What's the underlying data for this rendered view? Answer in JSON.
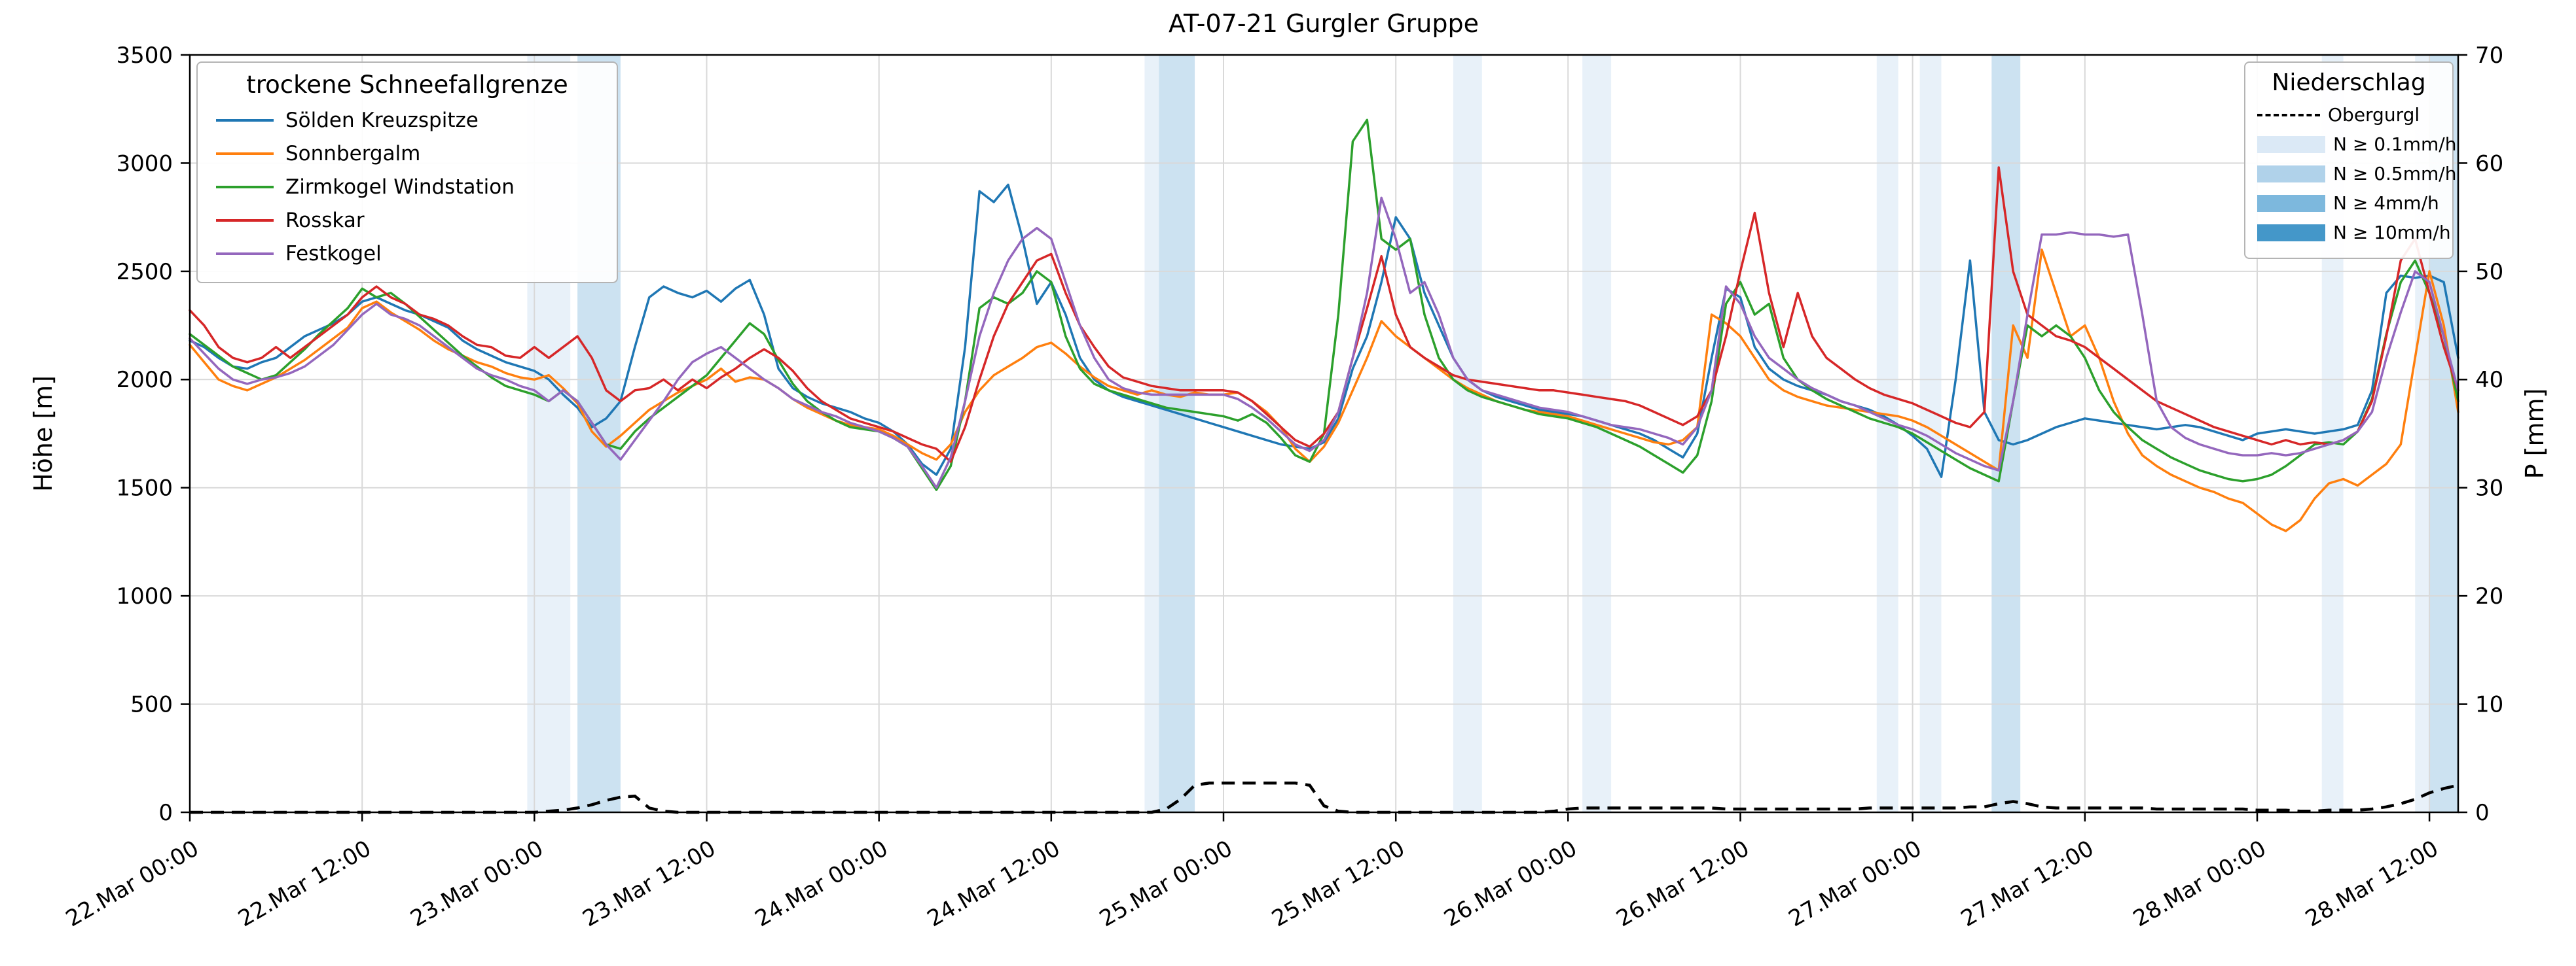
{
  "figure": {
    "title": "AT-07-21 Gurgler Gruppe",
    "ylabel_left": "Höhe [m]",
    "ylabel_right": "P [mm]"
  },
  "legend_snowline": {
    "title": "trockene Schneefallgrenze"
  },
  "legend_precip": {
    "title": "Niederschlag",
    "line_item": {
      "label": "Obergurgl"
    },
    "patch_items": [
      {
        "label": "N ≥ 0.1mm/h",
        "color": "#dbe9f6"
      },
      {
        "label": "N ≥ 0.5mm/h",
        "color": "#b0d2ea"
      },
      {
        "label": "N ≥ 4mm/h",
        "color": "#7db8dd"
      },
      {
        "label": "N ≥ 10mm/h",
        "color": "#4497c9"
      }
    ]
  },
  "chart_data": {
    "type": "line",
    "title": "AT-07-21 Gurgler Gruppe",
    "x_unit": "hours since 22.Mar 00:00, 1h resolution",
    "xlim_hours": [
      0,
      158
    ],
    "x_tick_hours": [
      0,
      12,
      24,
      36,
      48,
      60,
      72,
      84,
      96,
      108,
      120,
      132,
      144,
      156
    ],
    "x_tick_labels": [
      "22.Mar 00:00",
      "22.Mar 12:00",
      "23.Mar 00:00",
      "23.Mar 12:00",
      "24.Mar 00:00",
      "24.Mar 12:00",
      "25.Mar 00:00",
      "25.Mar 12:00",
      "26.Mar 00:00",
      "26.Mar 12:00",
      "27.Mar 00:00",
      "27.Mar 12:00",
      "28.Mar 00:00",
      "28.Mar 12:00"
    ],
    "ylabel_left": "Höhe [m]",
    "ylim_left": [
      0,
      3500
    ],
    "yticks_left": [
      0,
      500,
      1000,
      1500,
      2000,
      2500,
      3000,
      3500
    ],
    "ylabel_right": "P [mm]",
    "ylim_right": [
      0,
      70
    ],
    "yticks_right": [
      0,
      10,
      20,
      30,
      40,
      50,
      60,
      70
    ],
    "grid": true,
    "series": [
      {
        "name": "Sölden Kreuzspitze",
        "color": "#1f77b4",
        "values": [
          2180,
          2150,
          2100,
          2060,
          2050,
          2080,
          2100,
          2150,
          2200,
          2230,
          2260,
          2300,
          2360,
          2380,
          2350,
          2320,
          2300,
          2270,
          2240,
          2180,
          2140,
          2110,
          2080,
          2060,
          2040,
          2000,
          1930,
          1870,
          1780,
          1820,
          1900,
          2150,
          2380,
          2430,
          2400,
          2380,
          2410,
          2360,
          2420,
          2460,
          2300,
          2050,
          1960,
          1920,
          1890,
          1870,
          1850,
          1820,
          1800,
          1760,
          1700,
          1610,
          1560,
          1680,
          2150,
          2870,
          2820,
          2900,
          2650,
          2350,
          2450,
          2300,
          2100,
          2000,
          1950,
          1920,
          1900,
          1880,
          1860,
          1840,
          1820,
          1800,
          1780,
          1760,
          1740,
          1720,
          1700,
          1690,
          1680,
          1710,
          1820,
          2050,
          2200,
          2450,
          2750,
          2650,
          2400,
          2250,
          2100,
          2000,
          1950,
          1920,
          1900,
          1880,
          1860,
          1850,
          1840,
          1830,
          1810,
          1790,
          1770,
          1750,
          1720,
          1680,
          1640,
          1750,
          2100,
          2420,
          2380,
          2150,
          2050,
          2000,
          1970,
          1950,
          1930,
          1900,
          1880,
          1860,
          1830,
          1790,
          1740,
          1680,
          1550,
          2000,
          2550,
          1850,
          1720,
          1700,
          1720,
          1750,
          1780,
          1800,
          1820,
          1810,
          1800,
          1790,
          1780,
          1770,
          1780,
          1790,
          1780,
          1760,
          1740,
          1720,
          1750,
          1760,
          1770,
          1760,
          1750,
          1760,
          1770,
          1790,
          1950,
          2400,
          2480,
          2470,
          2480,
          2450,
          2100
        ]
      },
      {
        "name": "Sonnbergalm",
        "color": "#ff7f0e",
        "values": [
          2160,
          2080,
          2000,
          1970,
          1950,
          1980,
          2010,
          2050,
          2090,
          2140,
          2190,
          2240,
          2330,
          2360,
          2310,
          2270,
          2230,
          2180,
          2140,
          2110,
          2080,
          2060,
          2030,
          2010,
          2000,
          2020,
          1960,
          1890,
          1760,
          1690,
          1740,
          1800,
          1860,
          1900,
          1940,
          1970,
          2000,
          2050,
          1990,
          2010,
          2000,
          1960,
          1910,
          1870,
          1840,
          1810,
          1790,
          1780,
          1770,
          1740,
          1700,
          1660,
          1630,
          1700,
          1850,
          1950,
          2020,
          2060,
          2100,
          2150,
          2170,
          2120,
          2060,
          2010,
          1970,
          1950,
          1930,
          1950,
          1930,
          1920,
          1940,
          1930,
          1930,
          1940,
          1900,
          1850,
          1780,
          1680,
          1620,
          1690,
          1800,
          1950,
          2100,
          2270,
          2200,
          2150,
          2100,
          2050,
          2000,
          1960,
          1930,
          1900,
          1880,
          1860,
          1850,
          1840,
          1830,
          1810,
          1790,
          1770,
          1750,
          1730,
          1710,
          1700,
          1720,
          1780,
          2300,
          2260,
          2200,
          2100,
          2000,
          1950,
          1920,
          1900,
          1880,
          1870,
          1860,
          1850,
          1840,
          1830,
          1810,
          1780,
          1740,
          1700,
          1660,
          1620,
          1580,
          2250,
          2100,
          2600,
          2400,
          2200,
          2250,
          2100,
          1900,
          1750,
          1650,
          1600,
          1560,
          1530,
          1500,
          1480,
          1450,
          1430,
          1380,
          1330,
          1300,
          1350,
          1450,
          1520,
          1540,
          1510,
          1560,
          1610,
          1700,
          2100,
          2500,
          2250,
          1850
        ]
      },
      {
        "name": "Zirmkogel Windstation",
        "color": "#2ca02c",
        "values": [
          2210,
          2160,
          2110,
          2060,
          2030,
          2000,
          2020,
          2080,
          2140,
          2210,
          2270,
          2330,
          2420,
          2380,
          2400,
          2350,
          2290,
          2230,
          2170,
          2110,
          2060,
          2010,
          1970,
          1950,
          1930,
          1900,
          1950,
          1900,
          1800,
          1700,
          1680,
          1760,
          1820,
          1870,
          1920,
          1970,
          2020,
          2100,
          2180,
          2260,
          2210,
          2090,
          1980,
          1900,
          1850,
          1810,
          1780,
          1770,
          1760,
          1730,
          1690,
          1590,
          1490,
          1600,
          1900,
          2330,
          2380,
          2350,
          2400,
          2500,
          2450,
          2200,
          2050,
          1980,
          1950,
          1930,
          1910,
          1890,
          1870,
          1860,
          1850,
          1840,
          1830,
          1810,
          1840,
          1800,
          1730,
          1650,
          1620,
          1750,
          2300,
          3100,
          3200,
          2650,
          2600,
          2650,
          2300,
          2100,
          2000,
          1950,
          1920,
          1900,
          1880,
          1860,
          1840,
          1830,
          1820,
          1800,
          1780,
          1750,
          1720,
          1690,
          1650,
          1610,
          1570,
          1650,
          1900,
          2350,
          2450,
          2300,
          2350,
          2100,
          2000,
          1950,
          1910,
          1880,
          1850,
          1820,
          1800,
          1780,
          1750,
          1710,
          1670,
          1630,
          1590,
          1560,
          1530,
          1900,
          2250,
          2200,
          2250,
          2200,
          2100,
          1950,
          1850,
          1780,
          1720,
          1680,
          1640,
          1610,
          1580,
          1560,
          1540,
          1530,
          1540,
          1560,
          1600,
          1650,
          1700,
          1710,
          1700,
          1760,
          1910,
          2210,
          2450,
          2550,
          2400,
          2200,
          1900
        ]
      },
      {
        "name": "Rosskar",
        "color": "#d62728",
        "values": [
          2320,
          2250,
          2150,
          2100,
          2080,
          2100,
          2150,
          2100,
          2150,
          2200,
          2250,
          2300,
          2380,
          2430,
          2380,
          2350,
          2300,
          2280,
          2250,
          2200,
          2160,
          2150,
          2110,
          2100,
          2150,
          2100,
          2150,
          2200,
          2100,
          1950,
          1900,
          1950,
          1960,
          2000,
          1950,
          2000,
          1960,
          2010,
          2050,
          2100,
          2140,
          2100,
          2040,
          1960,
          1900,
          1860,
          1820,
          1800,
          1780,
          1760,
          1730,
          1700,
          1680,
          1620,
          1780,
          2000,
          2200,
          2350,
          2450,
          2550,
          2580,
          2400,
          2250,
          2150,
          2060,
          2010,
          1990,
          1970,
          1960,
          1950,
          1950,
          1950,
          1950,
          1940,
          1900,
          1840,
          1780,
          1720,
          1690,
          1750,
          1850,
          2100,
          2330,
          2570,
          2300,
          2150,
          2100,
          2060,
          2020,
          2000,
          1990,
          1980,
          1970,
          1960,
          1950,
          1950,
          1940,
          1930,
          1920,
          1910,
          1900,
          1880,
          1850,
          1820,
          1790,
          1830,
          1950,
          2200,
          2500,
          2770,
          2400,
          2150,
          2400,
          2200,
          2100,
          2050,
          2000,
          1960,
          1930,
          1910,
          1890,
          1860,
          1830,
          1800,
          1780,
          1850,
          2980,
          2500,
          2300,
          2250,
          2200,
          2180,
          2150,
          2100,
          2050,
          2000,
          1950,
          1900,
          1870,
          1840,
          1810,
          1780,
          1760,
          1740,
          1720,
          1700,
          1720,
          1700,
          1710,
          1700,
          1720,
          1760,
          1900,
          2200,
          2550,
          2650,
          2400,
          2150,
          1950
        ]
      },
      {
        "name": "Festkogel",
        "color": "#9467bd",
        "values": [
          2190,
          2120,
          2050,
          2000,
          1980,
          2000,
          2010,
          2030,
          2060,
          2110,
          2160,
          2230,
          2300,
          2350,
          2300,
          2280,
          2250,
          2200,
          2150,
          2100,
          2050,
          2020,
          2000,
          1970,
          1950,
          1900,
          1950,
          1900,
          1800,
          1700,
          1630,
          1720,
          1810,
          1900,
          2000,
          2080,
          2120,
          2150,
          2100,
          2050,
          2000,
          1960,
          1910,
          1880,
          1850,
          1830,
          1800,
          1780,
          1760,
          1730,
          1690,
          1600,
          1500,
          1640,
          1900,
          2200,
          2400,
          2550,
          2650,
          2700,
          2650,
          2450,
          2250,
          2100,
          2000,
          1960,
          1940,
          1930,
          1930,
          1930,
          1930,
          1930,
          1930,
          1910,
          1870,
          1820,
          1760,
          1700,
          1670,
          1720,
          1850,
          2100,
          2400,
          2840,
          2650,
          2400,
          2450,
          2300,
          2100,
          2000,
          1950,
          1930,
          1910,
          1890,
          1870,
          1860,
          1850,
          1830,
          1810,
          1790,
          1780,
          1770,
          1750,
          1730,
          1700,
          1780,
          1950,
          2430,
          2350,
          2200,
          2100,
          2050,
          2000,
          1960,
          1930,
          1900,
          1880,
          1850,
          1820,
          1790,
          1770,
          1740,
          1700,
          1660,
          1630,
          1600,
          1580,
          1900,
          2300,
          2670,
          2670,
          2680,
          2670,
          2670,
          2660,
          2670,
          2300,
          1900,
          1780,
          1730,
          1700,
          1680,
          1660,
          1650,
          1650,
          1660,
          1650,
          1660,
          1680,
          1700,
          1720,
          1760,
          1850,
          2100,
          2310,
          2500,
          2450,
          2200,
          1950
        ]
      }
    ],
    "precip_line": {
      "name": "Obergurgl",
      "color": "#000000",
      "style": "dashed",
      "axis": "right",
      "values": [
        0,
        0,
        0,
        0,
        0,
        0,
        0,
        0,
        0,
        0,
        0,
        0,
        0,
        0,
        0,
        0,
        0,
        0,
        0,
        0,
        0,
        0,
        0,
        0,
        0,
        0.1,
        0.2,
        0.4,
        0.7,
        1.1,
        1.4,
        1.5,
        0.4,
        0.1,
        0,
        0,
        0,
        0,
        0,
        0,
        0,
        0,
        0,
        0,
        0,
        0,
        0,
        0,
        0,
        0,
        0,
        0,
        0,
        0,
        0,
        0,
        0,
        0,
        0,
        0,
        0,
        0,
        0,
        0,
        0,
        0,
        0,
        0,
        0.3,
        1.2,
        2.5,
        2.7,
        2.7,
        2.7,
        2.7,
        2.7,
        2.7,
        2.7,
        2.5,
        0.6,
        0.1,
        0,
        0,
        0,
        0,
        0,
        0,
        0,
        0,
        0,
        0,
        0,
        0,
        0,
        0,
        0.1,
        0.3,
        0.4,
        0.4,
        0.4,
        0.4,
        0.4,
        0.4,
        0.4,
        0.4,
        0.4,
        0.4,
        0.3,
        0.3,
        0.3,
        0.3,
        0.3,
        0.3,
        0.3,
        0.3,
        0.3,
        0.3,
        0.4,
        0.4,
        0.4,
        0.4,
        0.4,
        0.4,
        0.4,
        0.5,
        0.5,
        0.8,
        1.0,
        0.8,
        0.5,
        0.4,
        0.4,
        0.4,
        0.4,
        0.4,
        0.4,
        0.4,
        0.3,
        0.3,
        0.3,
        0.3,
        0.3,
        0.3,
        0.3,
        0.2,
        0.2,
        0.2,
        0.1,
        0.1,
        0.2,
        0.2,
        0.2,
        0.3,
        0.5,
        0.8,
        1.2,
        1.8,
        2.2,
        2.5
      ]
    },
    "band_colors": {
      "0.1": "#dbe9f6",
      "0.5": "#b0d2ea",
      "4": "#7db8dd",
      "10": "#4497c9"
    },
    "precip_bands": [
      {
        "start_h": 23.5,
        "end_h": 26.5,
        "level": "0.1"
      },
      {
        "start_h": 27,
        "end_h": 30,
        "level": "0.5"
      },
      {
        "start_h": 66.5,
        "end_h": 67.5,
        "level": "0.1"
      },
      {
        "start_h": 67.5,
        "end_h": 70,
        "level": "0.5"
      },
      {
        "start_h": 88,
        "end_h": 90,
        "level": "0.1"
      },
      {
        "start_h": 97,
        "end_h": 99,
        "level": "0.1"
      },
      {
        "start_h": 117.5,
        "end_h": 119,
        "level": "0.1"
      },
      {
        "start_h": 120.5,
        "end_h": 122,
        "level": "0.1"
      },
      {
        "start_h": 125.5,
        "end_h": 127.5,
        "level": "0.5"
      },
      {
        "start_h": 148.5,
        "end_h": 150,
        "level": "0.1"
      },
      {
        "start_h": 155,
        "end_h": 156,
        "level": "0.1"
      },
      {
        "start_h": 156,
        "end_h": 158,
        "level": "0.5"
      }
    ]
  }
}
